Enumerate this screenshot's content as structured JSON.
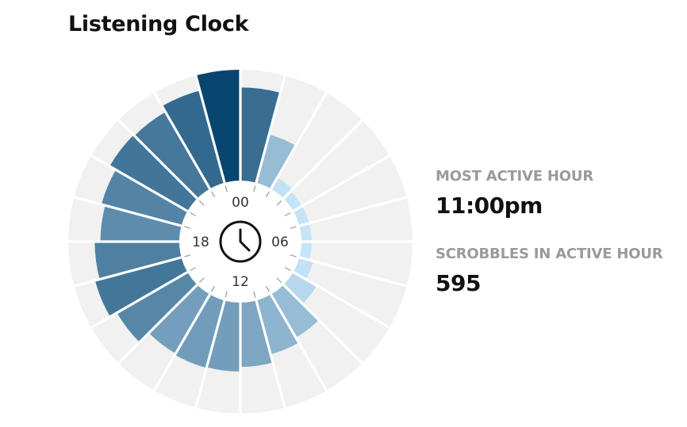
{
  "title": "Listening Clock",
  "stats": {
    "most_active_hour_label": "MOST ACTIVE HOUR",
    "most_active_hour_value": "11:00pm",
    "scrobbles_label": "SCROBBLES IN ACTIVE HOUR",
    "scrobbles_value": "595"
  },
  "icons": {
    "center": "clock-icon"
  },
  "colors": {
    "track": "#f1f1f1",
    "divider": "#ffffff",
    "scale_low": "#c6e4f7",
    "scale_high": "#08456f"
  },
  "chart_data": {
    "type": "radial-bar",
    "title": "Listening Clock",
    "hour_labels": [
      "00",
      "06",
      "12",
      "18"
    ],
    "hours": [
      0,
      1,
      2,
      3,
      4,
      5,
      6,
      7,
      8,
      9,
      10,
      11,
      12,
      13,
      14,
      15,
      16,
      17,
      18,
      19,
      20,
      21,
      22,
      23
    ],
    "values": [
      420,
      120,
      8,
      5,
      5,
      5,
      5,
      10,
      35,
      120,
      150,
      200,
      230,
      235,
      225,
      320,
      385,
      345,
      300,
      330,
      390,
      380,
      440,
      595
    ],
    "max": 595
  }
}
